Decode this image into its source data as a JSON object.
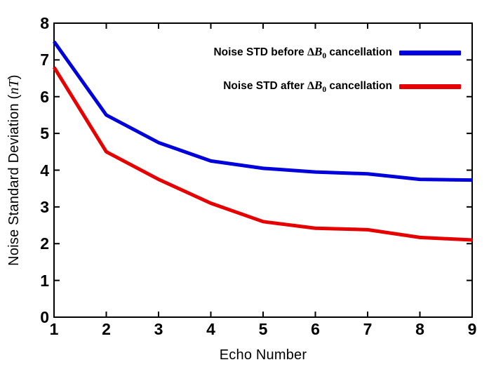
{
  "figure": {
    "x_label": "Echo Number",
    "y_label": {
      "prefix": "Noise Standard Deviation (",
      "math": "nT",
      "suffix": ")"
    },
    "axis_color": "#000000",
    "background": "#ffffff"
  },
  "legend": {
    "entries": [
      {
        "prefix": "Noise STD before ",
        "delta": "Δ",
        "var": "B",
        "sub": "0",
        "suffix": " cancellation",
        "color": "#0000dd"
      },
      {
        "prefix": "Noise STD after ",
        "delta": "Δ",
        "var": "B",
        "sub": "0",
        "suffix": " cancellation",
        "color": "#e60000"
      }
    ]
  },
  "chart_data": {
    "type": "line",
    "x": [
      1,
      2,
      3,
      4,
      5,
      6,
      7,
      8,
      9
    ],
    "series": [
      {
        "name": "Noise STD before ΔB0 cancellation",
        "color": "#0000dd",
        "values": [
          7.5,
          5.5,
          4.75,
          4.25,
          4.05,
          3.95,
          3.9,
          3.75,
          3.73
        ]
      },
      {
        "name": "Noise STD after ΔB0 cancellation",
        "color": "#e60000",
        "values": [
          6.8,
          4.5,
          3.75,
          3.1,
          2.6,
          2.42,
          2.38,
          2.17,
          2.1
        ]
      }
    ],
    "title": "",
    "xlabel": "Echo Number",
    "ylabel": "Noise Standard Deviation (nT)",
    "xlim": [
      1,
      9
    ],
    "ylim": [
      0,
      8
    ],
    "x_ticks": [
      1,
      2,
      3,
      4,
      5,
      6,
      7,
      8,
      9
    ],
    "y_ticks": [
      0,
      1,
      2,
      3,
      4,
      5,
      6,
      7,
      8
    ],
    "grid": false,
    "line_width": 5,
    "legend_position": "upper-right-inside"
  }
}
